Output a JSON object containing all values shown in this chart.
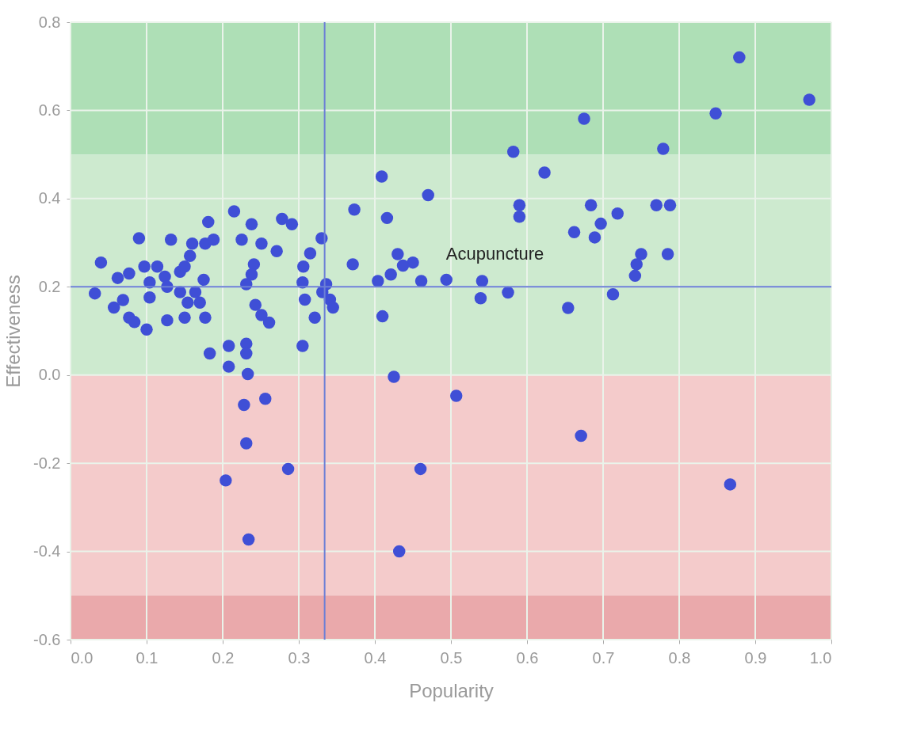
{
  "chart_data": {
    "type": "scatter",
    "xlabel": "Popularity",
    "ylabel": "Effectiveness",
    "xlim": [
      0,
      1
    ],
    "ylim": [
      -0.6,
      0.8
    ],
    "xticks": [
      {
        "value": 0,
        "label": "0.0"
      },
      0.1,
      0.2,
      0.3,
      0.4,
      0.5,
      0.6,
      0.7,
      0.8,
      0.9,
      {
        "value": 1,
        "label": "1.0"
      }
    ],
    "yticks": [
      {
        "value": -0.6,
        "label": "-0.6"
      },
      {
        "value": -0.4,
        "label": "-0.4"
      },
      {
        "value": -0.2,
        "label": "-0.2"
      },
      {
        "value": 0,
        "label": "0.0"
      },
      0.2,
      0.4,
      0.6,
      0.8
    ],
    "grid": true,
    "marker": "circle",
    "bands": [
      {
        "axis": "y",
        "from": 0.5,
        "to": 0.8,
        "color": "#aedfb6"
      },
      {
        "axis": "y",
        "from": 0,
        "to": 0.5,
        "color": "#cdeacf"
      },
      {
        "axis": "y",
        "from": -0.5,
        "to": 0,
        "color": "#f4cbcb"
      },
      {
        "axis": "y",
        "from": -0.6,
        "to": -0.5,
        "color": "#eaa9ab"
      }
    ],
    "ref_lines": [
      {
        "axis": "x",
        "value": 0.334,
        "color": "#6b7fd6"
      },
      {
        "axis": "y",
        "value": 0.2,
        "color": "#6b7fd6"
      }
    ],
    "annotations": [
      {
        "text": "Acupuncture",
        "x": 0.461,
        "y": 0.213
      }
    ],
    "series": [
      {
        "color": "#3f4fd6",
        "x": [
          0.04,
          0.032,
          0.062,
          0.077,
          0.09,
          0.132,
          0.057,
          0.069,
          0.077,
          0.084,
          0.1,
          0.097,
          0.104,
          0.104,
          0.114,
          0.124,
          0.127,
          0.127,
          0.144,
          0.15,
          0.157,
          0.16,
          0.144,
          0.154,
          0.15,
          0.164,
          0.175,
          0.17,
          0.177,
          0.177,
          0.188,
          0.181,
          0.183,
          0.215,
          0.225,
          0.238,
          0.251,
          0.271,
          0.278,
          0.291,
          0.241,
          0.238,
          0.231,
          0.243,
          0.251,
          0.261,
          0.208,
          0.231,
          0.231,
          0.208,
          0.233,
          0.305,
          0.33,
          0.315,
          0.306,
          0.305,
          0.308,
          0.321,
          0.336,
          0.341,
          0.345,
          0.331,
          0.425,
          0.228,
          0.256,
          0.231,
          0.286,
          0.46,
          0.204,
          0.234,
          0.432,
          0.507,
          0.671,
          0.867,
          0.879,
          0.971,
          0.848,
          0.675,
          0.779,
          0.582,
          0.623,
          0.409,
          0.373,
          0.416,
          0.47,
          0.59,
          0.59,
          0.684,
          0.719,
          0.697,
          0.689,
          0.662,
          0.77,
          0.788,
          0.785,
          0.75,
          0.744,
          0.742,
          0.713,
          0.654,
          0.575,
          0.539,
          0.541,
          0.494,
          0.461,
          0.45,
          0.43,
          0.437,
          0.421,
          0.404,
          0.371,
          0.41
        ],
        "values": [
          0.255,
          0.185,
          0.22,
          0.23,
          0.31,
          0.307,
          0.153,
          0.17,
          0.13,
          0.12,
          0.103,
          0.246,
          0.21,
          0.176,
          0.246,
          0.223,
          0.2,
          0.124,
          0.234,
          0.246,
          0.27,
          0.298,
          0.188,
          0.164,
          0.13,
          0.188,
          0.216,
          0.164,
          0.13,
          0.298,
          0.307,
          0.347,
          0.049,
          0.371,
          0.307,
          0.342,
          0.298,
          0.281,
          0.354,
          0.342,
          0.251,
          0.228,
          0.206,
          0.159,
          0.136,
          0.119,
          0.066,
          0.071,
          0.049,
          0.019,
          0.002,
          0.066,
          0.31,
          0.276,
          0.246,
          0.21,
          0.171,
          0.13,
          0.206,
          0.171,
          0.153,
          0.188,
          -0.004,
          -0.068,
          -0.054,
          -0.155,
          -0.213,
          -0.213,
          -0.239,
          -0.373,
          -0.4,
          -0.047,
          -0.138,
          -0.248,
          0.72,
          0.624,
          0.593,
          0.581,
          0.513,
          0.506,
          0.459,
          0.45,
          0.375,
          0.356,
          0.408,
          0.385,
          0.359,
          0.385,
          0.366,
          0.343,
          0.312,
          0.324,
          0.385,
          0.385,
          0.274,
          0.274,
          0.251,
          0.225,
          0.183,
          0.152,
          0.187,
          0.174,
          0.213,
          0.216,
          0.213,
          0.255,
          0.274,
          0.248,
          0.228,
          0.213,
          0.251,
          0.133
        ]
      }
    ]
  }
}
